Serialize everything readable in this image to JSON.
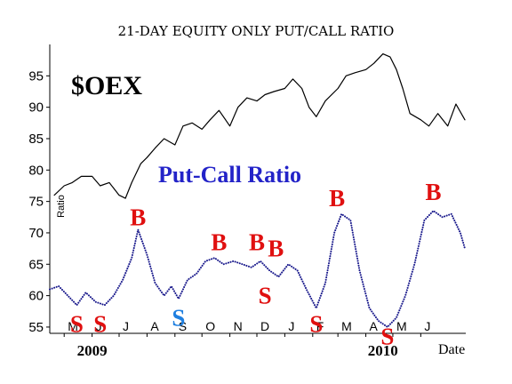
{
  "colors": {
    "oex_line": "#000000",
    "ratio_line": "#1a1a8c",
    "ratio_title": "#2323c8",
    "buy": "#e01010",
    "sell": "#e01010",
    "sell_alt": "#1f7fe0",
    "axis": "#000000"
  },
  "chart_data": {
    "type": "line",
    "title": "21-DAY EQUITY ONLY PUT/CALL RATIO",
    "xlabel": "Date",
    "y_axis_label": "Ratio",
    "ylim": [
      54,
      100
    ],
    "yticks": [
      55,
      60,
      65,
      70,
      75,
      80,
      85,
      90,
      95
    ],
    "x_range": [
      "2009-04-15",
      "2010-07-21"
    ],
    "month_labels": [
      {
        "label": "M",
        "date": "2009-05-01"
      },
      {
        "label": "J",
        "date": "2009-06-01"
      },
      {
        "label": "J",
        "date": "2009-07-01"
      },
      {
        "label": "A",
        "date": "2009-08-01"
      },
      {
        "label": "S",
        "date": "2009-09-01"
      },
      {
        "label": "O",
        "date": "2009-10-01"
      },
      {
        "label": "N",
        "date": "2009-11-01"
      },
      {
        "label": "D",
        "date": "2009-12-01"
      },
      {
        "label": "J",
        "date": "2010-01-01"
      },
      {
        "label": "F",
        "date": "2010-02-01"
      },
      {
        "label": "M",
        "date": "2010-03-01"
      },
      {
        "label": "A",
        "date": "2010-04-01"
      },
      {
        "label": "M",
        "date": "2010-05-01"
      },
      {
        "label": "J",
        "date": "2010-06-01"
      }
    ],
    "year_labels": [
      {
        "label": "2009",
        "date": "2009-06-01"
      },
      {
        "label": "2010",
        "date": "2010-04-20"
      }
    ],
    "series": [
      {
        "name": "$OEX",
        "style": "line",
        "x": [
          "2009-04-20",
          "2009-05-01",
          "2009-05-10",
          "2009-05-20",
          "2009-06-01",
          "2009-06-10",
          "2009-06-20",
          "2009-07-01",
          "2009-07-08",
          "2009-07-15",
          "2009-07-25",
          "2009-08-01",
          "2009-08-10",
          "2009-08-20",
          "2009-09-01",
          "2009-09-10",
          "2009-09-20",
          "2009-10-01",
          "2009-10-10",
          "2009-10-20",
          "2009-11-01",
          "2009-11-10",
          "2009-11-20",
          "2009-12-01",
          "2009-12-10",
          "2009-12-20",
          "2010-01-01",
          "2010-01-10",
          "2010-01-20",
          "2010-01-28",
          "2010-02-05",
          "2010-02-15",
          "2010-03-01",
          "2010-03-10",
          "2010-03-20",
          "2010-04-01",
          "2010-04-10",
          "2010-04-20",
          "2010-04-28",
          "2010-05-05",
          "2010-05-12",
          "2010-05-20",
          "2010-06-01",
          "2010-06-10",
          "2010-06-20",
          "2010-07-01",
          "2010-07-10",
          "2010-07-20"
        ],
        "y": [
          76,
          77.5,
          78,
          79,
          79,
          77.5,
          78,
          76,
          75.5,
          78,
          81,
          82,
          83.5,
          85,
          84,
          87,
          87.5,
          86.5,
          88,
          89.5,
          87,
          90,
          91.5,
          91,
          92,
          92.5,
          93,
          94.5,
          93,
          90,
          88.5,
          91,
          93,
          95,
          95.5,
          96,
          97,
          98.5,
          98,
          96,
          93,
          89,
          88,
          87,
          89,
          87,
          90.5,
          88
        ]
      },
      {
        "name": "Put-Call Ratio",
        "style": "dotted",
        "x": [
          "2009-04-15",
          "2009-04-25",
          "2009-05-05",
          "2009-05-15",
          "2009-05-25",
          "2009-06-05",
          "2009-06-15",
          "2009-06-25",
          "2009-07-05",
          "2009-07-15",
          "2009-07-22",
          "2009-08-01",
          "2009-08-10",
          "2009-08-20",
          "2009-08-28",
          "2009-09-05",
          "2009-09-15",
          "2009-09-25",
          "2009-10-05",
          "2009-10-15",
          "2009-10-25",
          "2009-11-05",
          "2009-11-15",
          "2009-11-25",
          "2009-12-05",
          "2009-12-15",
          "2009-12-25",
          "2010-01-05",
          "2010-01-15",
          "2010-01-25",
          "2010-02-05",
          "2010-02-15",
          "2010-02-25",
          "2010-03-05",
          "2010-03-15",
          "2010-03-25",
          "2010-04-05",
          "2010-04-15",
          "2010-04-25",
          "2010-05-05",
          "2010-05-15",
          "2010-05-25",
          "2010-06-05",
          "2010-06-15",
          "2010-06-25",
          "2010-07-05",
          "2010-07-15",
          "2010-07-20"
        ],
        "y": [
          61,
          61.5,
          60,
          58.5,
          60.5,
          59,
          58.5,
          60,
          62.5,
          66,
          70.5,
          66.5,
          62,
          60,
          61.5,
          59.5,
          62.5,
          63.5,
          65.5,
          66,
          65,
          65.5,
          65,
          64.5,
          65.5,
          64,
          63,
          65,
          64,
          61,
          58,
          62,
          70,
          73,
          72,
          64,
          58,
          56,
          55,
          56.5,
          60,
          65,
          72,
          73.5,
          72.5,
          73,
          70,
          67.5
        ]
      }
    ],
    "annotations": [
      {
        "text": "$OEX",
        "type": "label"
      },
      {
        "text": "Put-Call Ratio",
        "type": "label"
      },
      {
        "text": "S",
        "type": "sell",
        "date": "2009-05-15",
        "value": 55.5
      },
      {
        "text": "S",
        "type": "sell",
        "date": "2009-06-10",
        "value": 55.5
      },
      {
        "text": "B",
        "type": "buy",
        "date": "2009-07-22",
        "value": 72.5
      },
      {
        "text": "S",
        "type": "sell_alt",
        "date": "2009-09-05",
        "value": 56.5
      },
      {
        "text": "B",
        "type": "buy",
        "date": "2009-10-20",
        "value": 68.5
      },
      {
        "text": "B",
        "type": "buy",
        "date": "2009-12-01",
        "value": 68.5
      },
      {
        "text": "B",
        "type": "buy",
        "date": "2009-12-22",
        "value": 67.5
      },
      {
        "text": "S",
        "type": "sell",
        "date": "2009-12-10",
        "value": 60
      },
      {
        "text": "S",
        "type": "sell",
        "date": "2010-02-05",
        "value": 55.5
      },
      {
        "text": "B",
        "type": "buy",
        "date": "2010-02-28",
        "value": 75.5
      },
      {
        "text": "S",
        "type": "sell",
        "date": "2010-04-25",
        "value": 53.5
      },
      {
        "text": "B",
        "type": "buy",
        "date": "2010-06-15",
        "value": 76.5
      }
    ]
  }
}
